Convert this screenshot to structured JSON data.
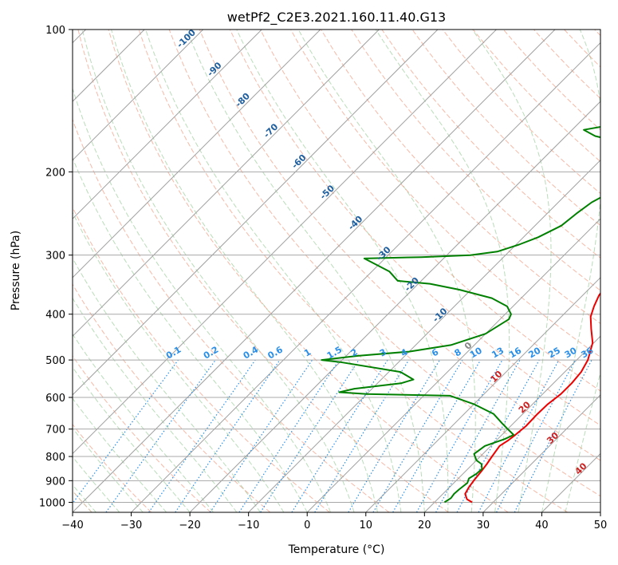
{
  "chart_data": {
    "type": "line",
    "title": "wetPf2_C2E3.2021.160.11.40.G13",
    "xlabel": "Temperature (°C)",
    "ylabel": "Pressure (hPa)",
    "xlim": [
      -40,
      50
    ],
    "ylim": [
      1050,
      100
    ],
    "yscale": "log",
    "x_ticks": [
      -40,
      -30,
      -20,
      -10,
      0,
      10,
      20,
      30,
      40,
      50
    ],
    "x_tick_labels": [
      "−40",
      "−30",
      "−20",
      "−10",
      "0",
      "10",
      "20",
      "30",
      "40",
      "50"
    ],
    "y_ticks": [
      1000,
      900,
      800,
      700,
      600,
      500,
      400,
      300,
      200,
      100
    ],
    "y_tick_labels": [
      "1000",
      "900",
      "800",
      "700",
      "600",
      "500",
      "400",
      "300",
      "200",
      "100"
    ],
    "series": [
      {
        "name": "Temperature",
        "color": "#ee0000",
        "points": [
          [
            26.4,
            1000
          ],
          [
            25.0,
            985
          ],
          [
            23.8,
            960
          ],
          [
            23.3,
            930
          ],
          [
            23.0,
            900
          ],
          [
            22.7,
            860
          ],
          [
            22.4,
            830
          ],
          [
            22.0,
            800
          ],
          [
            21.5,
            760
          ],
          [
            22.0,
            740
          ],
          [
            22.3,
            720
          ],
          [
            22.6,
            690
          ],
          [
            22.5,
            650
          ],
          [
            22.6,
            620
          ],
          [
            23.1,
            590
          ],
          [
            23.1,
            560
          ],
          [
            22.8,
            530
          ],
          [
            21.9,
            500
          ],
          [
            19.8,
            460
          ],
          [
            17.2,
            430
          ],
          [
            15.0,
            405
          ],
          [
            13.8,
            385
          ],
          [
            12.8,
            365
          ],
          [
            12.3,
            345
          ],
          [
            11.3,
            330
          ],
          [
            8.8,
            305
          ],
          [
            6.2,
            285
          ],
          [
            3.8,
            265
          ],
          [
            1.3,
            245
          ],
          [
            -0.8,
            225
          ],
          [
            -2.6,
            205
          ],
          [
            -3.4,
            195
          ],
          [
            -3.6,
            185
          ],
          [
            -2.6,
            175
          ],
          [
            -1.2,
            165
          ],
          [
            -1.5,
            155
          ],
          [
            -3.4,
            140
          ],
          [
            -5.1,
            128
          ],
          [
            -7.0,
            118
          ],
          [
            -7.6,
            110
          ],
          [
            -7.4,
            105
          ],
          [
            -6.5,
            100
          ]
        ]
      },
      {
        "name": "Dewpoint",
        "color": "#008000",
        "points": [
          [
            21.7,
            1000
          ],
          [
            22.1,
            980
          ],
          [
            21.9,
            960
          ],
          [
            22.0,
            940
          ],
          [
            22.3,
            910
          ],
          [
            21.8,
            890
          ],
          [
            22.3,
            870
          ],
          [
            22.4,
            850
          ],
          [
            21.5,
            830
          ],
          [
            20.0,
            815
          ],
          [
            18.5,
            790
          ],
          [
            19.0,
            760
          ],
          [
            21.2,
            735
          ],
          [
            22.0,
            720
          ],
          [
            20.0,
            700
          ],
          [
            18.0,
            680
          ],
          [
            15.0,
            650
          ],
          [
            10.0,
            620
          ],
          [
            4.5,
            595
          ],
          [
            -10.0,
            590
          ],
          [
            -15.0,
            585
          ],
          [
            -13.0,
            575
          ],
          [
            -6.0,
            560
          ],
          [
            -4.5,
            550
          ],
          [
            -8.0,
            530
          ],
          [
            -20.0,
            505
          ],
          [
            -23.5,
            500
          ],
          [
            -18.0,
            490
          ],
          [
            -10.0,
            480
          ],
          [
            -4.0,
            465
          ],
          [
            0.0,
            440
          ],
          [
            1.5,
            410
          ],
          [
            1.0,
            400
          ],
          [
            -1.0,
            385
          ],
          [
            -5.0,
            370
          ],
          [
            -12.0,
            355
          ],
          [
            -18.0,
            345
          ],
          [
            -24.0,
            340
          ],
          [
            -27.0,
            325
          ],
          [
            -33.5,
            305
          ],
          [
            -24.0,
            303
          ],
          [
            -16.0,
            300
          ],
          [
            -12.0,
            295
          ],
          [
            -9.5,
            285
          ],
          [
            -7.5,
            275
          ],
          [
            -5.5,
            260
          ],
          [
            -5.0,
            245
          ],
          [
            -4.3,
            232
          ],
          [
            -3.0,
            222
          ],
          [
            0.0,
            210
          ],
          [
            2.0,
            198
          ],
          [
            1.0,
            190
          ],
          [
            -2.0,
            182
          ],
          [
            -7.5,
            175
          ],
          [
            -15.0,
            168
          ],
          [
            -18.0,
            163
          ],
          [
            -15.0,
            160
          ],
          [
            -12.0,
            155
          ],
          [
            -11.0,
            147
          ],
          [
            -10.5,
            140
          ],
          [
            -8.0,
            135
          ],
          [
            -3.0,
            125
          ],
          [
            0.0,
            120
          ],
          [
            2.0,
            115
          ],
          [
            3.5,
            107
          ],
          [
            4.0,
            103
          ],
          [
            4.5,
            100
          ]
        ]
      }
    ],
    "dry_adiabat_labels": [
      "-100",
      "-90",
      "-80",
      "-70",
      "-60",
      "-50",
      "-40",
      "-30",
      "-20",
      "-10",
      "0",
      "10",
      "20",
      "30",
      "40"
    ],
    "mixing_ratio_labels": [
      "0.1",
      "0.2",
      "0.4",
      "0.6",
      "1",
      "1.5",
      "2",
      "3",
      "4",
      "6",
      "8",
      "10",
      "13",
      "16",
      "20",
      "25",
      "30",
      "36"
    ],
    "dry_adiabat_color": "#1f5f9f",
    "dry_adiabat_warm_color": "#cc2222",
    "mixing_ratio_color": "#2a8fe8"
  }
}
